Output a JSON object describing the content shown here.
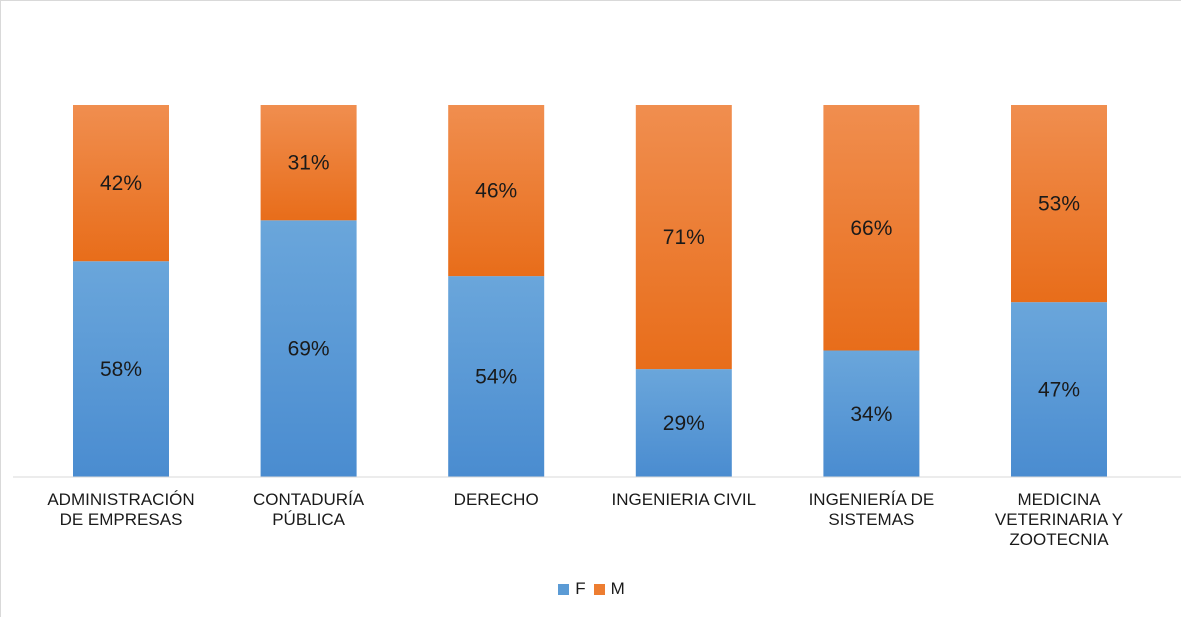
{
  "chart_data": {
    "type": "bar",
    "stacked": true,
    "percent": true,
    "categories": [
      "ADMINISTRACIÓN\nDE EMPRESAS",
      "CONTADURÍA\nPÚBLICA",
      "DERECHO",
      "INGENIERIA CIVIL",
      "INGENIERÍA DE\nSISTEMAS",
      "MEDICINA\nVETERINARIA Y\nZOOTECNIA"
    ],
    "series": [
      {
        "name": "F",
        "color": "#5b9bd5",
        "values": [
          58,
          69,
          54,
          29,
          34,
          47
        ]
      },
      {
        "name": "M",
        "color": "#ed7d31",
        "values": [
          42,
          31,
          46,
          71,
          66,
          53
        ]
      }
    ],
    "data_labels": {
      "F": [
        "58%",
        "69%",
        "54%",
        "29%",
        "34%",
        "47%"
      ],
      "M": [
        "42%",
        "31%",
        "46%",
        "71%",
        "66%",
        "53%"
      ]
    },
    "ylim": [
      0,
      100
    ],
    "grid": false,
    "legend_position": "bottom"
  }
}
